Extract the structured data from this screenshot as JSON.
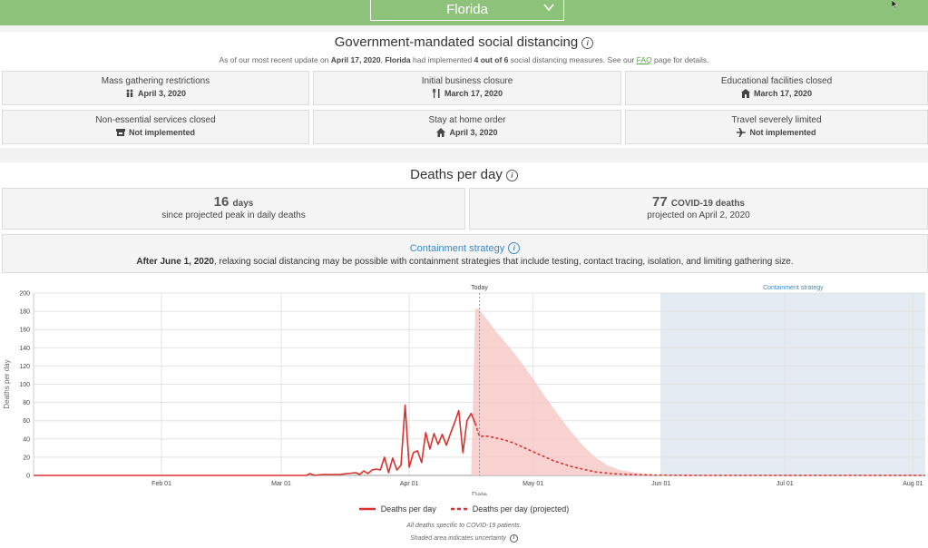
{
  "header": {
    "state_select": "Florida"
  },
  "distancing": {
    "title": "Government-mandated social distancing",
    "sub_prefix": "As of our most recent update on ",
    "sub_date": "April 17, 2020",
    "sub_mid1": ", ",
    "sub_state": "Florida",
    "sub_mid2": " had implemented ",
    "sub_count": "4 out of 6",
    "sub_mid3": " social distancing measures. See our ",
    "sub_faq": "FAQ",
    "sub_suffix": " page for details.",
    "measures": [
      {
        "label": "Mass gathering restrictions",
        "value": "April 3, 2020",
        "icon": "people-icon"
      },
      {
        "label": "Initial business closure",
        "value": "March 17, 2020",
        "icon": "utensils-icon"
      },
      {
        "label": "Educational facilities closed",
        "value": "March 17, 2020",
        "icon": "school-icon"
      },
      {
        "label": "Non-essential services closed",
        "value": "Not implemented",
        "icon": "store-icon"
      },
      {
        "label": "Stay at home order",
        "value": "April 3, 2020",
        "icon": "home-icon"
      },
      {
        "label": "Travel severely limited",
        "value": "Not implemented",
        "icon": "plane-icon"
      }
    ]
  },
  "deaths": {
    "title": "Deaths per day",
    "peak_days": "16",
    "peak_unit": "days",
    "peak_caption": "since projected peak in daily deaths",
    "peak_deaths": "77",
    "peak_deaths_unit": "COVID-19 deaths",
    "peak_deaths_caption": "projected on April 2, 2020",
    "containment_title": "Containment strategy",
    "containment_bold": "After June 1, 2020",
    "containment_text": ", relaxing social distancing may be possible with containment strategies that include testing, contact tracing, isolation, and limiting gathering size.",
    "legend_actual": "Deaths per day",
    "legend_projected": "Deaths per day (projected)",
    "note1": "All deaths specific to COVID-19 patients.",
    "note2": "Shaded area indicates uncertainty"
  },
  "colors": {
    "accent_green": "#8cc27a",
    "line_red": "#d9322e",
    "band_pink": "#f7c9c9",
    "containment_blue": "#e4ebf2",
    "link_blue": "#3a8ac0"
  },
  "chart_data": {
    "type": "line",
    "xlabel": "Date",
    "ylabel": "Deaths per day",
    "ylim": [
      0,
      200
    ],
    "yticks": [
      0,
      20,
      40,
      60,
      80,
      100,
      120,
      140,
      160,
      180,
      200
    ],
    "xticks": [
      {
        "label": "Feb 01",
        "day": 31
      },
      {
        "label": "Mar 01",
        "day": 60
      },
      {
        "label": "Apr 01",
        "day": 91
      },
      {
        "label": "May 01",
        "day": 121
      },
      {
        "label": "Jun 01",
        "day": 152
      },
      {
        "label": "Jul 01",
        "day": 182
      },
      {
        "label": "Aug 01",
        "day": 213
      }
    ],
    "xrange_days": [
      0,
      216
    ],
    "today_label": "Today",
    "today_day": 108,
    "containment_label": "Containment strategy",
    "containment_start_day": 152,
    "actual": {
      "name": "Deaths per day",
      "day": [
        0,
        66,
        67,
        68,
        70,
        72,
        74,
        76,
        78,
        79,
        80,
        81,
        82,
        83,
        84,
        85,
        86,
        87,
        88,
        89,
        90,
        91,
        92,
        93,
        94,
        95,
        96,
        97,
        98,
        99,
        100,
        101,
        102,
        103,
        104,
        105,
        106,
        107
      ],
      "value": [
        0,
        0,
        2,
        0,
        1,
        1,
        1,
        2,
        3,
        1,
        5,
        2,
        6,
        7,
        6,
        20,
        3,
        19,
        6,
        11,
        77,
        9,
        25,
        27,
        14,
        47,
        29,
        46,
        34,
        45,
        33,
        46,
        58,
        71,
        25,
        60,
        68,
        57
      ]
    },
    "projected": {
      "name": "Deaths per day (projected)",
      "day": [
        107,
        108,
        110,
        112,
        114,
        116,
        118,
        120,
        122,
        124,
        126,
        128,
        130,
        132,
        134,
        136,
        138,
        140,
        142,
        146,
        150,
        155,
        160,
        216
      ],
      "value": [
        57,
        43,
        43,
        41,
        39,
        36,
        32,
        28,
        24,
        20,
        16,
        13,
        10,
        8,
        6,
        4,
        3,
        2,
        1.5,
        0.8,
        0.4,
        0.2,
        0,
        0
      ]
    },
    "band_upper": {
      "day": [
        106,
        107,
        108,
        110,
        112,
        115,
        118,
        121,
        124,
        127,
        130,
        133,
        136,
        139,
        142,
        146,
        150,
        155,
        160
      ],
      "value": [
        0,
        183,
        182,
        170,
        158,
        142,
        125,
        106,
        86,
        67,
        49,
        33,
        20,
        11,
        6,
        3,
        1,
        0.5,
        0
      ]
    },
    "band_lower": {
      "day": [
        106,
        160
      ],
      "value": [
        0,
        0
      ]
    }
  }
}
